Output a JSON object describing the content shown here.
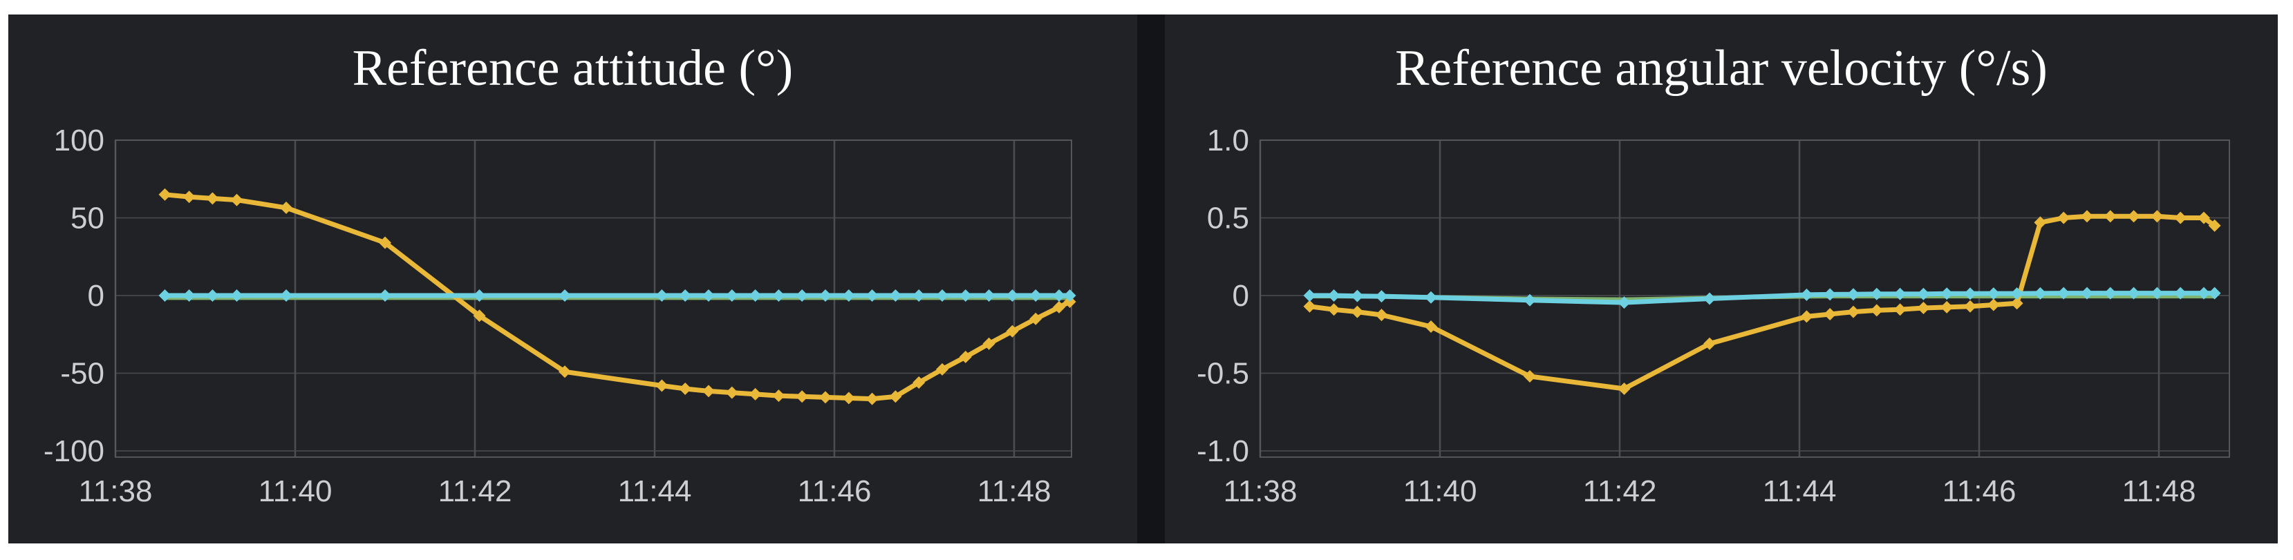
{
  "colors": {
    "page_background": "#ffffff",
    "dashboard_gap": "#131417",
    "panel_background": "#212226",
    "grid_vertical": "#4c4d52",
    "grid_horizontal": "#424347",
    "plot_border": "#55565a",
    "axis_text": "#cdced0",
    "title_text": "#ffffff",
    "series_yellow": "#EAB839",
    "series_cyan": "#6DD0E0",
    "series_green": "#7EB26D"
  },
  "chart_data": [
    {
      "type": "line",
      "title": "Reference attitude (°)",
      "xlabel": "",
      "ylabel": "",
      "grid": true,
      "legend": "none",
      "x_axis": {
        "tick_labels": [
          "11:38",
          "11:40",
          "11:42",
          "11:44",
          "11:46",
          "11:48"
        ],
        "tick_minutes": [
          0,
          2,
          4,
          6,
          8,
          10
        ],
        "start_time": "11:38",
        "minutes_span": [
          0,
          10.64
        ]
      },
      "y_axis": {
        "tick_labels": [
          "100",
          "50",
          "0",
          "-50",
          "-100"
        ],
        "tick_values": [
          100,
          50,
          0,
          -50,
          -100
        ],
        "ylim": [
          -100,
          100
        ]
      },
      "times_min": [
        0.55,
        0.82,
        1.08,
        1.35,
        1.9,
        3.0,
        4.05,
        5.0,
        6.08,
        6.34,
        6.6,
        6.86,
        7.12,
        7.38,
        7.64,
        7.9,
        8.16,
        8.42,
        8.68,
        8.94,
        9.2,
        9.46,
        9.72,
        9.98,
        10.24,
        10.5,
        10.62
      ],
      "series": [
        {
          "name": "green-flat-series",
          "color": "#7EB26D",
          "markers": false,
          "line_width": 6,
          "values": [
            -1.5,
            -1.5,
            -1.5,
            -1.5,
            -1.5,
            -1.5,
            -1.5,
            -1.5,
            -1.5,
            -1.5,
            -1.5,
            -1.5,
            -1.5,
            -1.5,
            -1.5,
            -1.5,
            -1.5,
            -1.5,
            -1.5,
            -1.5,
            -1.5,
            -1.5,
            -1.5,
            -1.5,
            -1.5,
            -1.5,
            -1.5
          ]
        },
        {
          "name": "yellow-reference-series",
          "color": "#EAB839",
          "markers": true,
          "line_width": 7,
          "values": [
            65,
            63.5,
            62.5,
            61.5,
            56.5,
            34,
            -13,
            -49,
            -58,
            -60,
            -61.5,
            -62.5,
            -63.5,
            -64.5,
            -65,
            -65.5,
            -66,
            -66.5,
            -65,
            -56,
            -47.5,
            -39.5,
            -31,
            -23,
            -15,
            -7.5,
            -4
          ]
        },
        {
          "name": "cyan-flat-series",
          "color": "#6DD0E0",
          "markers": true,
          "line_width": 7,
          "values": [
            0,
            0,
            0,
            0,
            0,
            0,
            0,
            0,
            0,
            0,
            0,
            0,
            0,
            0,
            0,
            0,
            0,
            0,
            0,
            0,
            0,
            0,
            0,
            0,
            0,
            0,
            0
          ]
        }
      ]
    },
    {
      "type": "line",
      "title": "Reference angular velocity (°/s)",
      "xlabel": "",
      "ylabel": "",
      "grid": true,
      "legend": "none",
      "x_axis": {
        "tick_labels": [
          "11:38",
          "11:40",
          "11:42",
          "11:44",
          "11:46",
          "11:48"
        ],
        "tick_minutes": [
          0,
          2,
          4,
          6,
          8,
          10
        ],
        "start_time": "11:38",
        "minutes_span": [
          0,
          10.78
        ]
      },
      "y_axis": {
        "tick_labels": [
          "1.0",
          "0.5",
          "0",
          "-0.5",
          "-1.0"
        ],
        "tick_values": [
          1.0,
          0.5,
          0,
          -0.5,
          -1.0
        ],
        "ylim": [
          -1.0,
          1.0
        ]
      },
      "times_min": [
        0.55,
        0.82,
        1.08,
        1.35,
        1.9,
        3.0,
        4.05,
        5.0,
        6.08,
        6.34,
        6.6,
        6.86,
        7.12,
        7.38,
        7.64,
        7.9,
        8.16,
        8.42,
        8.68,
        8.94,
        9.2,
        9.46,
        9.72,
        9.98,
        10.24,
        10.5,
        10.62
      ],
      "series": [
        {
          "name": "green-flat-series",
          "color": "#7EB26D",
          "markers": false,
          "line_width": 6,
          "values": [
            -0.005,
            -0.005,
            -0.006,
            -0.007,
            -0.01,
            -0.02,
            -0.025,
            -0.015,
            -0.006,
            -0.005,
            -0.005,
            -0.005,
            -0.005,
            -0.005,
            -0.005,
            -0.005,
            -0.005,
            -0.005,
            -0.005,
            -0.005,
            -0.005,
            -0.005,
            -0.005,
            -0.005,
            -0.005,
            -0.005,
            -0.005
          ]
        },
        {
          "name": "yellow-reference-series",
          "color": "#EAB839",
          "markers": true,
          "line_width": 7,
          "values": [
            -0.07,
            -0.09,
            -0.105,
            -0.125,
            -0.2,
            -0.52,
            -0.6,
            -0.31,
            -0.135,
            -0.12,
            -0.105,
            -0.095,
            -0.09,
            -0.08,
            -0.075,
            -0.07,
            -0.06,
            -0.05,
            0.47,
            0.5,
            0.51,
            0.51,
            0.51,
            0.51,
            0.5,
            0.5,
            0.45
          ]
        },
        {
          "name": "cyan-flat-series",
          "color": "#6DD0E0",
          "markers": true,
          "line_width": 7,
          "values": [
            0,
            0,
            -0.003,
            -0.005,
            -0.012,
            -0.03,
            -0.045,
            -0.02,
            0.005,
            0.007,
            0.008,
            0.01,
            0.01,
            0.01,
            0.012,
            0.012,
            0.013,
            0.013,
            0.014,
            0.015,
            0.015,
            0.015,
            0.015,
            0.015,
            0.015,
            0.015,
            0.015
          ]
        }
      ]
    }
  ]
}
